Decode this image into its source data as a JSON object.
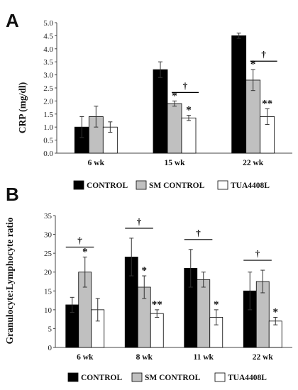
{
  "chart_data": [
    {
      "panel": "A",
      "type": "bar",
      "ylabel": "CRP (mg/dl)",
      "xlabel": "",
      "ylim": [
        0,
        5
      ],
      "yticks": [
        "0.0",
        "0.5",
        "1.0",
        "1.5",
        "2.0",
        "2.5",
        "3.0",
        "3.5",
        "4.0",
        "4.5",
        "5.0"
      ],
      "categories": [
        "6 wk",
        "15 wk",
        "22 wk"
      ],
      "series": [
        {
          "name": "CONTROL",
          "color": "#000000",
          "values": [
            1.0,
            3.2,
            4.5
          ],
          "errors": [
            0.4,
            0.3,
            0.1
          ],
          "marks": [
            "",
            "",
            ""
          ]
        },
        {
          "name": "SM CONTROL",
          "color": "#c0c0c0",
          "values": [
            1.4,
            1.9,
            2.8
          ],
          "errors": [
            0.4,
            0.1,
            0.4
          ],
          "marks": [
            "",
            "*",
            "*"
          ]
        },
        {
          "name": "TUA4408L",
          "color": "#ffffff",
          "values": [
            1.0,
            1.35,
            1.4
          ],
          "errors": [
            0.2,
            0.1,
            0.3
          ],
          "marks": [
            "",
            "*",
            "**"
          ]
        }
      ],
      "dagger": "†",
      "dagger_categories": [
        1,
        2
      ],
      "legend": [
        "CONTROL",
        "SM CONTROL",
        "TUA4408L"
      ],
      "legend_position": "bottom",
      "grid": false
    },
    {
      "panel": "B",
      "type": "bar",
      "ylabel": "Granulocyte:Lymphocyte ratio",
      "xlabel": "",
      "ylim": [
        0,
        35
      ],
      "yticks": [
        "0",
        "5",
        "10",
        "15",
        "20",
        "25",
        "30",
        "35"
      ],
      "categories": [
        "6 wk",
        "8 wk",
        "11 wk",
        "22 wk"
      ],
      "series": [
        {
          "name": "CONTROL",
          "color": "#000000",
          "values": [
            11.3,
            24,
            21,
            15
          ],
          "errors": [
            2,
            5,
            5,
            5
          ],
          "marks": [
            "",
            "",
            "",
            ""
          ]
        },
        {
          "name": "SM CONTROL",
          "color": "#c0c0c0",
          "values": [
            20,
            16,
            18,
            17.5
          ],
          "errors": [
            4,
            3,
            2,
            3
          ],
          "marks": [
            "*",
            "*",
            "",
            ""
          ]
        },
        {
          "name": "TUA4408L",
          "color": "#ffffff",
          "values": [
            10,
            9,
            8,
            7
          ],
          "errors": [
            3,
            1,
            2,
            1
          ],
          "marks": [
            "",
            "**",
            "*",
            "*"
          ]
        }
      ],
      "dagger": "†",
      "dagger_categories": [
        0,
        1,
        2,
        3
      ],
      "legend": [
        "CONTROL",
        "SM CONTROL",
        "TUA4408L"
      ],
      "legend_position": "bottom",
      "grid": false
    }
  ]
}
